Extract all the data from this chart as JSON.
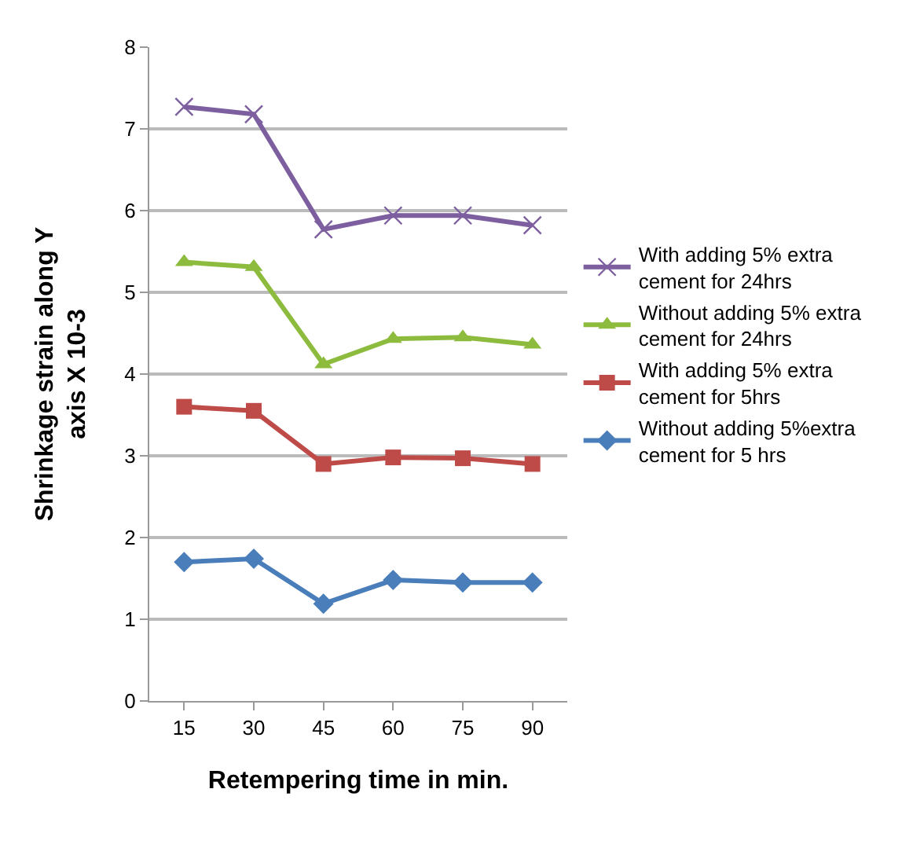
{
  "chart_data": {
    "type": "line",
    "xlabel": "Retempering time in min.",
    "ylabel": "Shrinkage strain along Y axis X 10-3",
    "categories": [
      "15",
      "30",
      "45",
      "60",
      "75",
      "90"
    ],
    "series": [
      {
        "name": "With adding 5% extra cement for 24hrs",
        "color": "#7d5fa0",
        "marker": "cross",
        "values": [
          7.27,
          7.18,
          5.77,
          5.94,
          5.94,
          5.82
        ]
      },
      {
        "name": "Without adding 5% extra cement for 24hrs",
        "color": "#8cbb3e",
        "marker": "triangle",
        "values": [
          5.37,
          5.31,
          4.12,
          4.43,
          4.45,
          4.36
        ]
      },
      {
        "name": "With adding 5% extra cement for 5hrs",
        "color": "#be4b48",
        "marker": "square",
        "values": [
          3.6,
          3.55,
          2.9,
          2.98,
          2.97,
          2.9
        ]
      },
      {
        "name": "Without adding 5%extra cement for 5 hrs",
        "color": "#4a7ebb",
        "marker": "diamond",
        "values": [
          1.7,
          1.74,
          1.19,
          1.48,
          1.45,
          1.45
        ]
      }
    ],
    "ylim": [
      0,
      8
    ],
    "yticks": [
      0,
      1,
      2,
      3,
      4,
      5,
      6,
      7,
      8
    ],
    "grid": "y",
    "legend": "right",
    "line_style": "solid"
  }
}
